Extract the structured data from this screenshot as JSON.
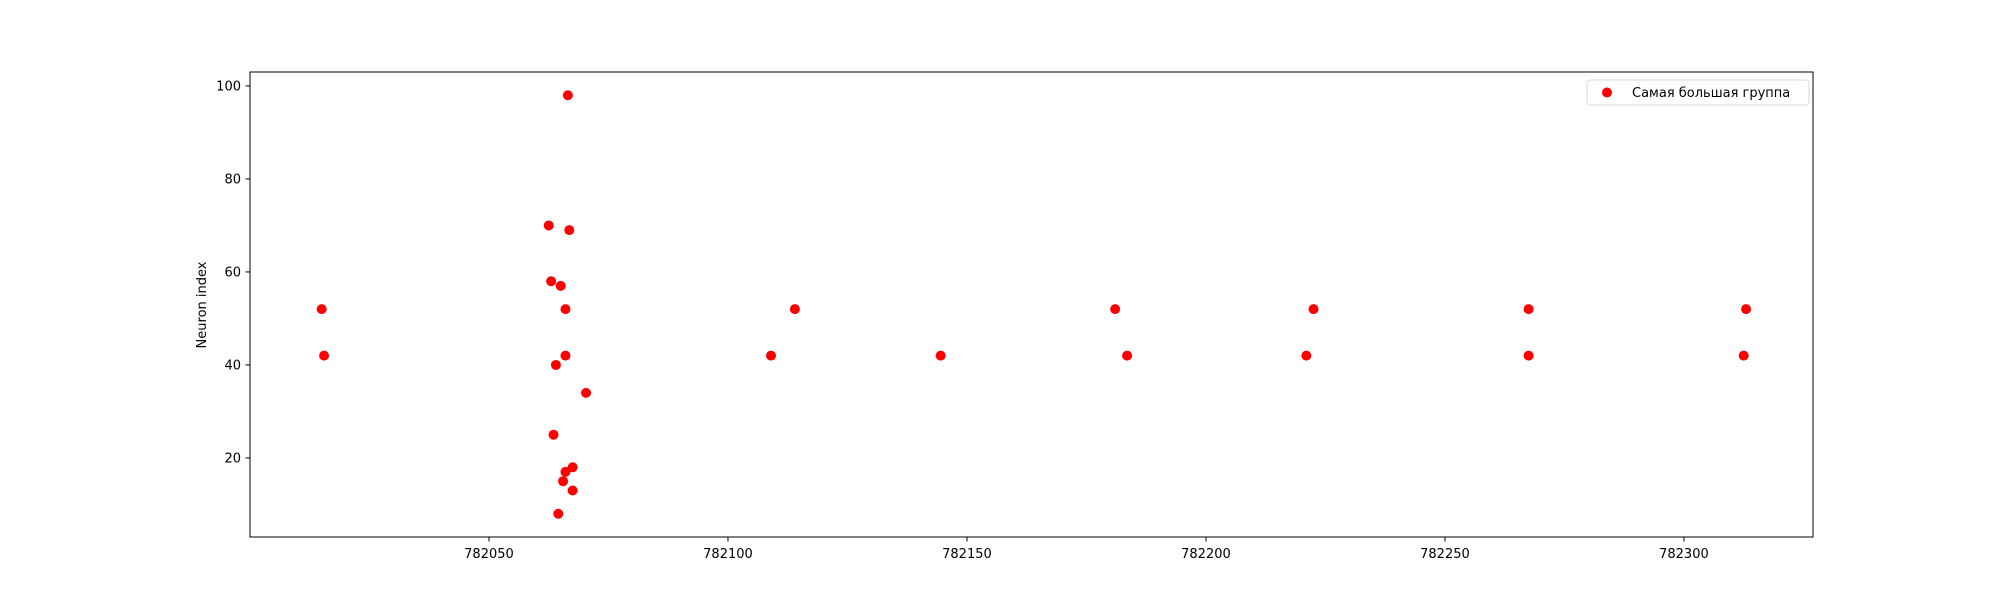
{
  "chart_data": {
    "type": "scatter",
    "title": "",
    "xlabel": "",
    "ylabel": "Neuron index",
    "xlim": [
      782000,
      782327
    ],
    "ylim": [
      3,
      103
    ],
    "xticks": [
      782050,
      782100,
      782150,
      782200,
      782250,
      782300
    ],
    "yticks": [
      20,
      40,
      60,
      80,
      100
    ],
    "grid": false,
    "legend_position": "top-right",
    "series": [
      {
        "name": "Самая большая группа",
        "color": "#ff0000",
        "marker": "circle",
        "points": [
          {
            "x": 782015,
            "y": 52
          },
          {
            "x": 782015.5,
            "y": 42
          },
          {
            "x": 782062.5,
            "y": 70
          },
          {
            "x": 782063,
            "y": 58
          },
          {
            "x": 782063.5,
            "y": 25
          },
          {
            "x": 782064,
            "y": 40
          },
          {
            "x": 782064.5,
            "y": 8
          },
          {
            "x": 782065,
            "y": 57
          },
          {
            "x": 782065.5,
            "y": 15
          },
          {
            "x": 782066,
            "y": 52
          },
          {
            "x": 782066,
            "y": 42
          },
          {
            "x": 782066,
            "y": 17
          },
          {
            "x": 782066.5,
            "y": 98
          },
          {
            "x": 782066.8,
            "y": 69
          },
          {
            "x": 782067.5,
            "y": 18
          },
          {
            "x": 782067.5,
            "y": 13
          },
          {
            "x": 782070.3,
            "y": 34
          },
          {
            "x": 782109,
            "y": 42
          },
          {
            "x": 782114,
            "y": 52
          },
          {
            "x": 782144.5,
            "y": 42
          },
          {
            "x": 782181,
            "y": 52
          },
          {
            "x": 782183.5,
            "y": 42
          },
          {
            "x": 782221,
            "y": 42
          },
          {
            "x": 782222.5,
            "y": 52
          },
          {
            "x": 782267.5,
            "y": 52
          },
          {
            "x": 782267.5,
            "y": 42
          },
          {
            "x": 782312.5,
            "y": 42
          },
          {
            "x": 782313,
            "y": 52
          }
        ]
      }
    ]
  }
}
